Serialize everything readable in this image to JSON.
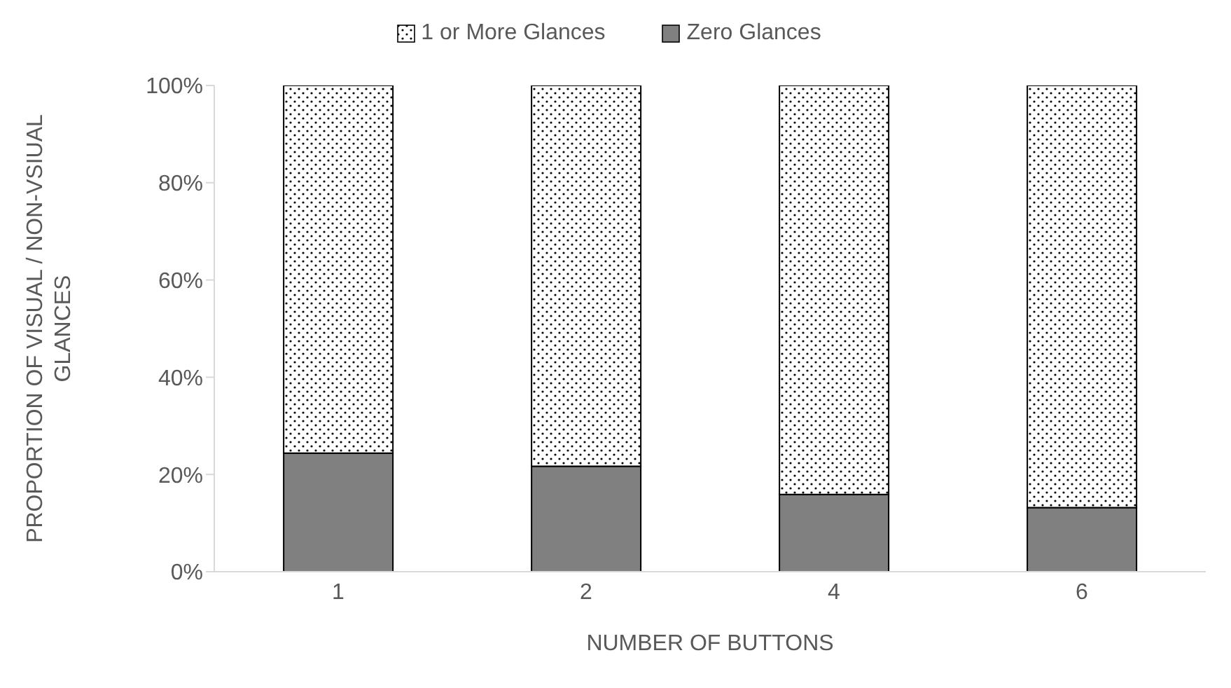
{
  "chart_data": {
    "type": "bar",
    "stacked": true,
    "xlabel": "NUMBER OF BUTTONS",
    "ylabel": "PROPORTION OF VISUAL / NON-VSIUAL GLANCES",
    "categories": [
      "1",
      "2",
      "4",
      "6"
    ],
    "series": [
      {
        "name": "Zero Glances",
        "color": "#808080",
        "values": [
          24.4,
          21.7,
          15.9,
          13.2
        ]
      },
      {
        "name": "1 or More Glances",
        "color": "#000000",
        "values": [
          75.6,
          78.3,
          84.1,
          86.8
        ]
      }
    ],
    "ylim": [
      0,
      100
    ],
    "yticks": [
      {
        "value": 0,
        "label": "0%"
      },
      {
        "value": 20,
        "label": "20%"
      },
      {
        "value": 40,
        "label": "40%"
      },
      {
        "value": 60,
        "label": "60%"
      },
      {
        "value": 80,
        "label": "80%"
      },
      {
        "value": 100,
        "label": "100%"
      }
    ],
    "grid": false,
    "legend": "top"
  }
}
